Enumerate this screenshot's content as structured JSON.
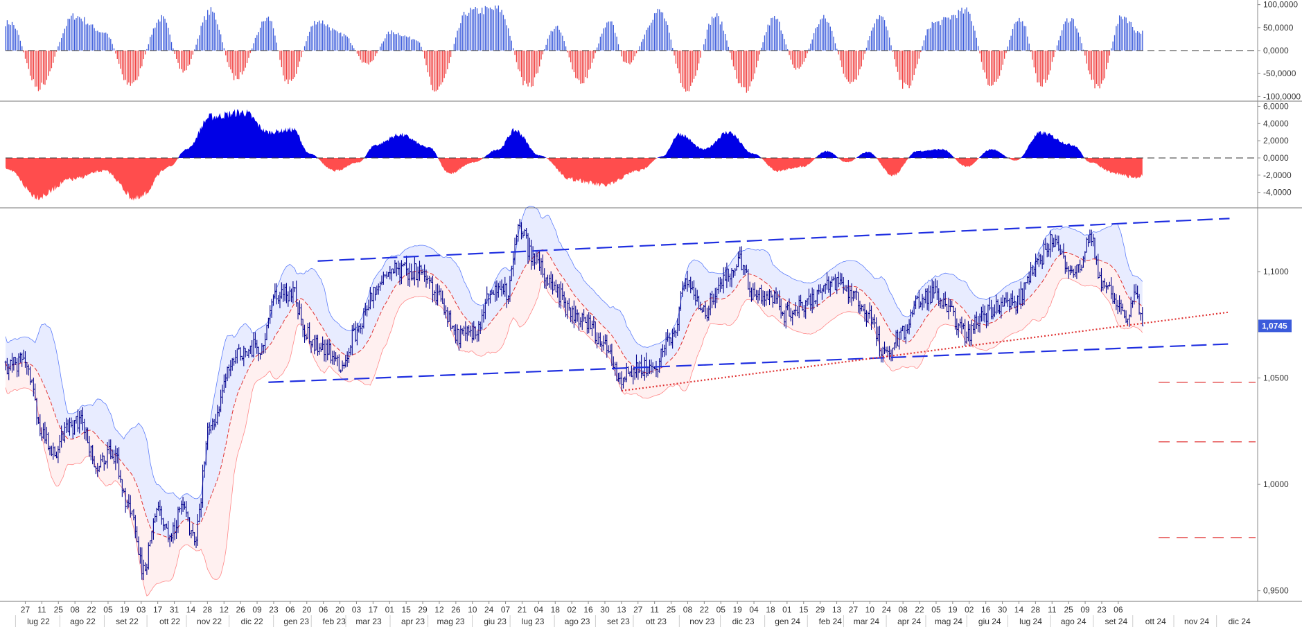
{
  "chart_data": [
    {
      "type": "bar",
      "panel": "oscillator-top",
      "yticks": [
        "100,0000",
        "50,0000",
        "0,0000",
        "-50,0000",
        "-100,0000"
      ],
      "ylim": [
        -110,
        110
      ],
      "colors": {
        "positive": "#3b5bdb",
        "negative": "#f03e3e"
      },
      "zero_line": "dashed",
      "wave_peaks": [
        {
          "t": 3,
          "v": 60
        },
        {
          "t": 20,
          "v": -80
        },
        {
          "t": 42,
          "v": 75
        },
        {
          "t": 60,
          "v": 40
        },
        {
          "t": 76,
          "v": -75
        },
        {
          "t": 95,
          "v": 70
        },
        {
          "t": 108,
          "v": -45
        },
        {
          "t": 125,
          "v": 85
        },
        {
          "t": 140,
          "v": -60
        },
        {
          "t": 160,
          "v": 70
        },
        {
          "t": 172,
          "v": -70
        },
        {
          "t": 190,
          "v": 65
        },
        {
          "t": 205,
          "v": 35
        },
        {
          "t": 220,
          "v": -30
        },
        {
          "t": 235,
          "v": 40
        },
        {
          "t": 250,
          "v": 25
        },
        {
          "t": 262,
          "v": -85
        },
        {
          "t": 282,
          "v": 85
        },
        {
          "t": 300,
          "v": 90
        },
        {
          "t": 318,
          "v": -80
        },
        {
          "t": 335,
          "v": 50
        },
        {
          "t": 350,
          "v": -70
        },
        {
          "t": 368,
          "v": 60
        },
        {
          "t": 378,
          "v": -30
        },
        {
          "t": 398,
          "v": 85
        },
        {
          "t": 415,
          "v": -90
        },
        {
          "t": 432,
          "v": 75
        },
        {
          "t": 450,
          "v": -85
        },
        {
          "t": 468,
          "v": 70
        },
        {
          "t": 482,
          "v": -40
        },
        {
          "t": 498,
          "v": 70
        },
        {
          "t": 515,
          "v": -75
        },
        {
          "t": 532,
          "v": 75
        },
        {
          "t": 548,
          "v": -80
        },
        {
          "t": 565,
          "v": 60
        },
        {
          "t": 585,
          "v": 85
        },
        {
          "t": 600,
          "v": -80
        },
        {
          "t": 618,
          "v": 70
        },
        {
          "t": 630,
          "v": -75
        },
        {
          "t": 648,
          "v": 70
        },
        {
          "t": 665,
          "v": -80
        },
        {
          "t": 680,
          "v": 75
        },
        {
          "t": 690,
          "v": 40
        }
      ],
      "last_t": 692
    },
    {
      "type": "area",
      "panel": "oscillator-middle",
      "yticks": [
        "6,0000",
        "4,0000",
        "2,0000",
        "0,0000",
        "-2,0000",
        "-4,0000"
      ],
      "ylim": [
        -5.8,
        6.6
      ],
      "colors": {
        "positive": "#0000e6",
        "negative": "#ff4d4d"
      },
      "zero_line": "dashed",
      "wave_points": [
        {
          "t": 0,
          "v": -1.2
        },
        {
          "t": 20,
          "v": -4.5
        },
        {
          "t": 40,
          "v": -2.5
        },
        {
          "t": 60,
          "v": -1.5
        },
        {
          "t": 80,
          "v": -4.8
        },
        {
          "t": 100,
          "v": -1
        },
        {
          "t": 110,
          "v": 1
        },
        {
          "t": 125,
          "v": 4.8
        },
        {
          "t": 145,
          "v": 5.3
        },
        {
          "t": 160,
          "v": 3
        },
        {
          "t": 175,
          "v": 3.3
        },
        {
          "t": 185,
          "v": 0.5
        },
        {
          "t": 200,
          "v": -1.5
        },
        {
          "t": 215,
          "v": -0.5
        },
        {
          "t": 225,
          "v": 1.5
        },
        {
          "t": 240,
          "v": 2.7
        },
        {
          "t": 258,
          "v": 1.2
        },
        {
          "t": 270,
          "v": -1.8
        },
        {
          "t": 285,
          "v": -0.5
        },
        {
          "t": 300,
          "v": 1
        },
        {
          "t": 310,
          "v": 3.2
        },
        {
          "t": 325,
          "v": 0.3
        },
        {
          "t": 345,
          "v": -2.5
        },
        {
          "t": 365,
          "v": -3.2
        },
        {
          "t": 385,
          "v": -1.5
        },
        {
          "t": 400,
          "v": 0.2
        },
        {
          "t": 410,
          "v": 2.8
        },
        {
          "t": 425,
          "v": 1
        },
        {
          "t": 440,
          "v": 3
        },
        {
          "t": 455,
          "v": 0.5
        },
        {
          "t": 470,
          "v": -1.5
        },
        {
          "t": 485,
          "v": -1
        },
        {
          "t": 500,
          "v": 0.8
        },
        {
          "t": 512,
          "v": -0.5
        },
        {
          "t": 525,
          "v": 0.7
        },
        {
          "t": 540,
          "v": -2
        },
        {
          "t": 555,
          "v": 0.8
        },
        {
          "t": 570,
          "v": 1
        },
        {
          "t": 585,
          "v": -1
        },
        {
          "t": 600,
          "v": 1
        },
        {
          "t": 615,
          "v": -0.3
        },
        {
          "t": 630,
          "v": 2.9
        },
        {
          "t": 650,
          "v": 1.5
        },
        {
          "t": 660,
          "v": -0.5
        },
        {
          "t": 675,
          "v": -1.8
        },
        {
          "t": 688,
          "v": -2.3
        },
        {
          "t": 692,
          "v": -2.0
        }
      ],
      "last_t": 692
    },
    {
      "type": "line",
      "panel": "price",
      "series_style": "ohlc-bars with bollinger bands",
      "yticks": [
        "1,1000",
        "1,0500",
        "1,0000",
        "0,9500"
      ],
      "ylim": [
        0.945,
        1.13
      ],
      "last_price_label": "1,0745",
      "colors": {
        "price": "#00008b",
        "band_upper_fill": "#e8ecff",
        "band_lower_fill": "#fff0f0",
        "band_upper_line": "#5c7cfa",
        "band_lower_line": "#ff8787",
        "middle": "#e03131",
        "channel": "#1f2fe0",
        "support": "#e03131",
        "badge": "#3b5bdb"
      },
      "close_path": [
        {
          "t": 0,
          "v": 1.055
        },
        {
          "t": 12,
          "v": 1.058
        },
        {
          "t": 22,
          "v": 1.025
        },
        {
          "t": 30,
          "v": 1.015
        },
        {
          "t": 38,
          "v": 1.025
        },
        {
          "t": 46,
          "v": 1.03
        },
        {
          "t": 55,
          "v": 1.01
        },
        {
          "t": 65,
          "v": 1.015
        },
        {
          "t": 75,
          "v": 0.99
        },
        {
          "t": 84,
          "v": 0.96
        },
        {
          "t": 92,
          "v": 0.99
        },
        {
          "t": 100,
          "v": 0.975
        },
        {
          "t": 108,
          "v": 0.99
        },
        {
          "t": 115,
          "v": 0.975
        },
        {
          "t": 125,
          "v": 1.03
        },
        {
          "t": 140,
          "v": 1.06
        },
        {
          "t": 155,
          "v": 1.065
        },
        {
          "t": 165,
          "v": 1.09
        },
        {
          "t": 175,
          "v": 1.09
        },
        {
          "t": 183,
          "v": 1.07
        },
        {
          "t": 192,
          "v": 1.065
        },
        {
          "t": 205,
          "v": 1.055
        },
        {
          "t": 212,
          "v": 1.07
        },
        {
          "t": 225,
          "v": 1.09
        },
        {
          "t": 235,
          "v": 1.1
        },
        {
          "t": 250,
          "v": 1.1
        },
        {
          "t": 262,
          "v": 1.09
        },
        {
          "t": 275,
          "v": 1.07
        },
        {
          "t": 285,
          "v": 1.07
        },
        {
          "t": 295,
          "v": 1.09
        },
        {
          "t": 305,
          "v": 1.09
        },
        {
          "t": 313,
          "v": 1.12
        },
        {
          "t": 322,
          "v": 1.105
        },
        {
          "t": 335,
          "v": 1.09
        },
        {
          "t": 345,
          "v": 1.08
        },
        {
          "t": 355,
          "v": 1.075
        },
        {
          "t": 365,
          "v": 1.065
        },
        {
          "t": 375,
          "v": 1.05
        },
        {
          "t": 385,
          "v": 1.055
        },
        {
          "t": 395,
          "v": 1.055
        },
        {
          "t": 405,
          "v": 1.07
        },
        {
          "t": 415,
          "v": 1.095
        },
        {
          "t": 425,
          "v": 1.08
        },
        {
          "t": 435,
          "v": 1.095
        },
        {
          "t": 447,
          "v": 1.105
        },
        {
          "t": 455,
          "v": 1.09
        },
        {
          "t": 465,
          "v": 1.09
        },
        {
          "t": 475,
          "v": 1.08
        },
        {
          "t": 485,
          "v": 1.085
        },
        {
          "t": 495,
          "v": 1.09
        },
        {
          "t": 505,
          "v": 1.095
        },
        {
          "t": 515,
          "v": 1.09
        },
        {
          "t": 525,
          "v": 1.08
        },
        {
          "t": 535,
          "v": 1.06
        },
        {
          "t": 545,
          "v": 1.07
        },
        {
          "t": 555,
          "v": 1.085
        },
        {
          "t": 565,
          "v": 1.09
        },
        {
          "t": 575,
          "v": 1.08
        },
        {
          "t": 585,
          "v": 1.07
        },
        {
          "t": 595,
          "v": 1.08
        },
        {
          "t": 605,
          "v": 1.085
        },
        {
          "t": 615,
          "v": 1.085
        },
        {
          "t": 625,
          "v": 1.1
        },
        {
          "t": 637,
          "v": 1.115
        },
        {
          "t": 645,
          "v": 1.105
        },
        {
          "t": 652,
          "v": 1.1
        },
        {
          "t": 660,
          "v": 1.115
        },
        {
          "t": 668,
          "v": 1.095
        },
        {
          "t": 676,
          "v": 1.085
        },
        {
          "t": 683,
          "v": 1.078
        },
        {
          "t": 688,
          "v": 1.09
        },
        {
          "t": 692,
          "v": 1.0745
        }
      ],
      "channel_upper": {
        "t0": 190,
        "v0": 1.105,
        "t1": 745,
        "v1": 1.125
      },
      "channel_lower": {
        "t0": 160,
        "v0": 1.048,
        "t1": 745,
        "v1": 1.066
      },
      "support_line": {
        "t0": 375,
        "v0": 1.044,
        "t1": 745,
        "v1": 1.081
      },
      "target_levels": [
        1.048,
        1.02,
        0.975
      ],
      "last_t": 692
    }
  ],
  "x_axis": {
    "days": [
      "27",
      "11",
      "25",
      "08",
      "22",
      "05",
      "19",
      "03",
      "17",
      "31",
      "14",
      "28",
      "12",
      "26",
      "09",
      "23",
      "06",
      "20",
      "06",
      "20",
      "03",
      "17",
      "01",
      "15",
      "29",
      "12",
      "26",
      "10",
      "24",
      "07",
      "21",
      "04",
      "18",
      "02",
      "16",
      "30",
      "13",
      "27",
      "11",
      "25",
      "08",
      "22",
      "05",
      "19",
      "04",
      "18",
      "01",
      "15",
      "29",
      "13",
      "27",
      "10",
      "24",
      "08",
      "22",
      "05",
      "19",
      "02",
      "16",
      "30",
      "14",
      "28",
      "11",
      "25",
      "09",
      "23",
      "06"
    ],
    "months": [
      {
        "label": "lug 22",
        "t": 20
      },
      {
        "label": "ago 22",
        "t": 47
      },
      {
        "label": "set 22",
        "t": 74
      },
      {
        "label": "ott 22",
        "t": 100
      },
      {
        "label": "nov 22",
        "t": 124
      },
      {
        "label": "dic 22",
        "t": 150
      },
      {
        "label": "gen 23",
        "t": 177
      },
      {
        "label": "feb 23",
        "t": 200
      },
      {
        "label": "mar 23",
        "t": 221
      },
      {
        "label": "apr 23",
        "t": 248
      },
      {
        "label": "mag 23",
        "t": 271
      },
      {
        "label": "giu 23",
        "t": 298
      },
      {
        "label": "lug 23",
        "t": 321
      },
      {
        "label": "ago 23",
        "t": 348
      },
      {
        "label": "set 23",
        "t": 373
      },
      {
        "label": "ott 23",
        "t": 396
      },
      {
        "label": "nov 23",
        "t": 424
      },
      {
        "label": "dic 23",
        "t": 449
      },
      {
        "label": "gen 24",
        "t": 476
      },
      {
        "label": "feb 24",
        "t": 502
      },
      {
        "label": "mar 24",
        "t": 524
      },
      {
        "label": "apr 24",
        "t": 550
      },
      {
        "label": "mag 24",
        "t": 574
      },
      {
        "label": "giu 24",
        "t": 599
      },
      {
        "label": "lug 24",
        "t": 624
      },
      {
        "label": "ago 24",
        "t": 650
      },
      {
        "label": "set 24",
        "t": 676
      },
      {
        "label": "ott 24",
        "t": 700
      },
      {
        "label": "nov 24",
        "t": 725
      },
      {
        "label": "dic 24",
        "t": 751
      }
    ]
  },
  "colors": {
    "axis": "#888888",
    "grid_sep": "#777777",
    "text": "#333333",
    "background": "#ffffff"
  }
}
